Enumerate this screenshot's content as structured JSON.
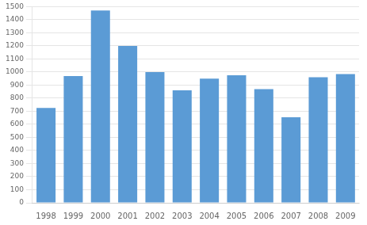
{
  "chart_data": {
    "type": "bar",
    "categories": [
      "1998",
      "1999",
      "2000",
      "2001",
      "2002",
      "2003",
      "2004",
      "2005",
      "2006",
      "2007",
      "2008",
      "2009"
    ],
    "values": [
      725,
      970,
      1470,
      1200,
      1000,
      860,
      950,
      975,
      870,
      655,
      960,
      985
    ],
    "color": "#5B9BD5",
    "ylim": [
      0,
      1500
    ],
    "yticks": [
      0,
      100,
      200,
      300,
      400,
      500,
      600,
      700,
      800,
      900,
      1000,
      1100,
      1200,
      1300,
      1400,
      1500
    ],
    "grid": true
  }
}
